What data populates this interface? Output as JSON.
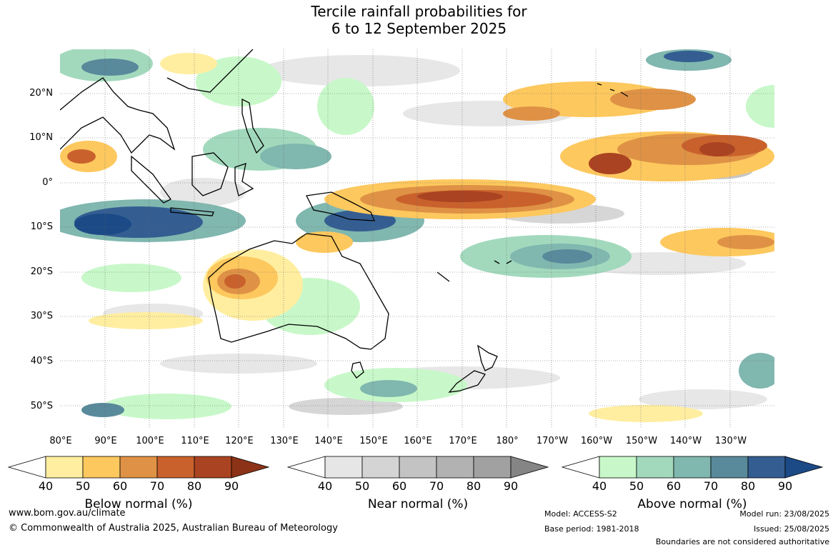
{
  "title": {
    "line1": "Tercile rainfall probabilities for",
    "line2": "6 to 12 September 2025"
  },
  "lat_labels": [
    "20°N",
    "10°N",
    "0°",
    "10°S",
    "20°S",
    "30°S",
    "40°S",
    "50°S"
  ],
  "lon_labels": [
    "80°E",
    "90°E",
    "100°E",
    "110°E",
    "120°E",
    "130°E",
    "140°E",
    "150°E",
    "160°E",
    "170°E",
    "180°",
    "170°W",
    "160°W",
    "150°W",
    "140°W",
    "130°W"
  ],
  "colorbars": [
    {
      "title": "Below normal (%)",
      "ticks": [
        "40",
        "50",
        "60",
        "70",
        "80",
        "90"
      ],
      "colors": [
        "#ffeea0",
        "#fdc85e",
        "#df9245",
        "#c9612d",
        "#aa4321",
        "#8c3216"
      ]
    },
    {
      "title": "Near normal (%)",
      "ticks": [
        "40",
        "50",
        "60",
        "70",
        "80",
        "90"
      ],
      "colors": [
        "#e6e6e6",
        "#d4d4d4",
        "#c3c3c3",
        "#b2b2b2",
        "#a1a1a1",
        "#858585"
      ]
    },
    {
      "title": "Above normal (%)",
      "ticks": [
        "40",
        "50",
        "60",
        "70",
        "80",
        "90"
      ],
      "colors": [
        "#c8f8c9",
        "#a2d9bd",
        "#80b7af",
        "#588a9b",
        "#345e92",
        "#1b4a86"
      ]
    }
  ],
  "footer": {
    "url": "www.bom.gov.au/climate",
    "copyright": "© Commonwealth of Australia 2025, Australian Bureau of Meteorology",
    "model": "Model: ACCESS-S2",
    "base_period": "Base period: 1981-2018",
    "model_run": "Model run: 23/08/2025",
    "issued": "Issued: 25/08/2025",
    "disclaimer": "Boundaries are not considered authoritative"
  }
}
